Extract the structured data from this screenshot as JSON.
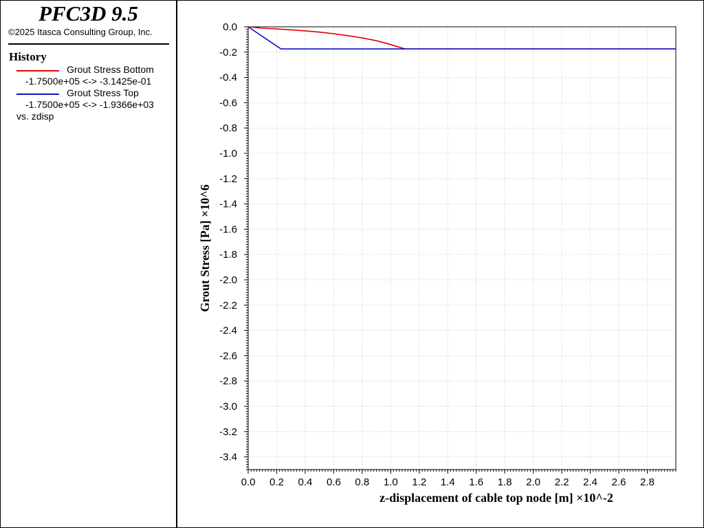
{
  "app": {
    "title": "PFC3D 9.5",
    "copyright": "©2025 Itasca Consulting Group, Inc."
  },
  "legend": {
    "heading": "History",
    "series": [
      {
        "label": "Grout Stress Bottom",
        "range": "-1.7500e+05 <-> -3.1425e-01",
        "color": "#e00000"
      },
      {
        "label": "Grout Stress Top",
        "range": "-1.7500e+05 <-> -1.9366e+03",
        "color": "#1010c0"
      }
    ],
    "vs_label": "vs. zdisp"
  },
  "chart_data": {
    "type": "line",
    "xlabel": "z-displacement of cable top node [m]  ×10^-2",
    "ylabel": "Grout Stress [Pa]  ×10^6",
    "xlim": [
      0,
      3.0
    ],
    "ylim": [
      -3.5,
      0
    ],
    "x_ticks": [
      0.0,
      0.2,
      0.4,
      0.6,
      0.8,
      1.0,
      1.2,
      1.4,
      1.6,
      1.8,
      2.0,
      2.2,
      2.4,
      2.6,
      2.8
    ],
    "x_tick_labels": [
      "0.0",
      "0.2",
      "0.4",
      "0.6",
      "0.8",
      "1.0",
      "1.2",
      "1.4",
      "1.6",
      "1.8",
      "2.0",
      "2.2",
      "2.4",
      "2.6",
      "2.8"
    ],
    "y_ticks": [
      0.0,
      -0.2,
      -0.4,
      -0.6,
      -0.8,
      -1.0,
      -1.2,
      -1.4,
      -1.6,
      -1.8,
      -2.0,
      -2.2,
      -2.4,
      -2.6,
      -2.8,
      -3.0,
      -3.2,
      -3.4
    ],
    "y_tick_labels": [
      "0.0",
      "-0.2",
      "-0.4",
      "-0.6",
      "-0.8",
      "-1.0",
      "-1.2",
      "-1.4",
      "-1.6",
      "-1.8",
      "-2.0",
      "-2.2",
      "-2.4",
      "-2.6",
      "-2.8",
      "-3.0",
      "-3.2",
      "-3.4"
    ],
    "grid": true,
    "series": [
      {
        "name": "Grout Stress Bottom",
        "color": "#e00000",
        "x": [
          0.0,
          0.1,
          0.2,
          0.3,
          0.4,
          0.5,
          0.6,
          0.7,
          0.8,
          0.9,
          1.0,
          1.1,
          1.5,
          2.0,
          2.5,
          3.0
        ],
        "y": [
          0.0,
          -0.011,
          -0.017,
          -0.024,
          -0.032,
          -0.042,
          -0.055,
          -0.07,
          -0.088,
          -0.11,
          -0.14,
          -0.175,
          -0.175,
          -0.175,
          -0.175,
          -0.175
        ]
      },
      {
        "name": "Grout Stress Top",
        "color": "#1010c0",
        "x": [
          0.0,
          0.23,
          0.5,
          1.0,
          1.5,
          2.0,
          2.5,
          3.0
        ],
        "y": [
          0.0,
          -0.175,
          -0.175,
          -0.175,
          -0.175,
          -0.175,
          -0.175,
          -0.175
        ]
      }
    ]
  }
}
